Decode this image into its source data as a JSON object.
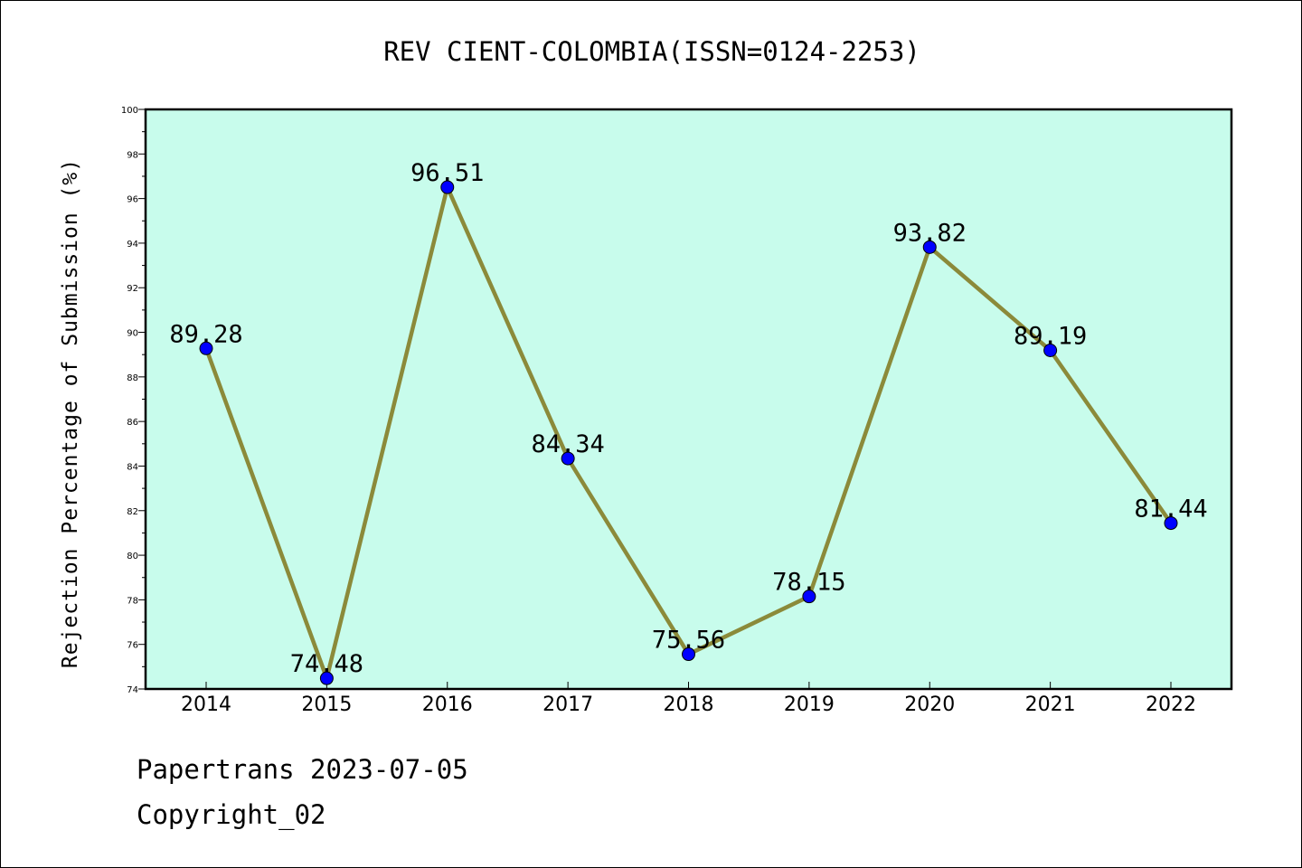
{
  "chart_data": {
    "type": "line",
    "title": "REV CIENT-COLOMBIA(ISSN=0124-2253)",
    "xlabel": "",
    "ylabel": "Rejection Percentage of Submission (%)",
    "categories": [
      "2014",
      "2015",
      "2016",
      "2017",
      "2018",
      "2019",
      "2020",
      "2021",
      "2022"
    ],
    "series": [
      {
        "values": [
          89.28,
          74.48,
          96.51,
          84.34,
          75.56,
          78.15,
          93.82,
          89.19,
          81.44
        ],
        "labels": [
          "89.28",
          "74.48",
          "96.51",
          "84.34",
          "75.56",
          "78.15",
          "93.82",
          "89.19",
          "81.44"
        ]
      }
    ],
    "ylim": [
      74,
      100
    ],
    "yticks": [
      "74",
      "76",
      "78",
      "80",
      "82",
      "84",
      "86",
      "88",
      "90",
      "92",
      "94",
      "96",
      "98",
      "100"
    ],
    "grid": false,
    "colors": {
      "plot_background": "#c8fcec",
      "line": "#8b8a3a",
      "marker": "#0000ff"
    }
  },
  "footer": {
    "source": "Papertrans 2023-07-05",
    "copyright": "Copyright_02"
  }
}
